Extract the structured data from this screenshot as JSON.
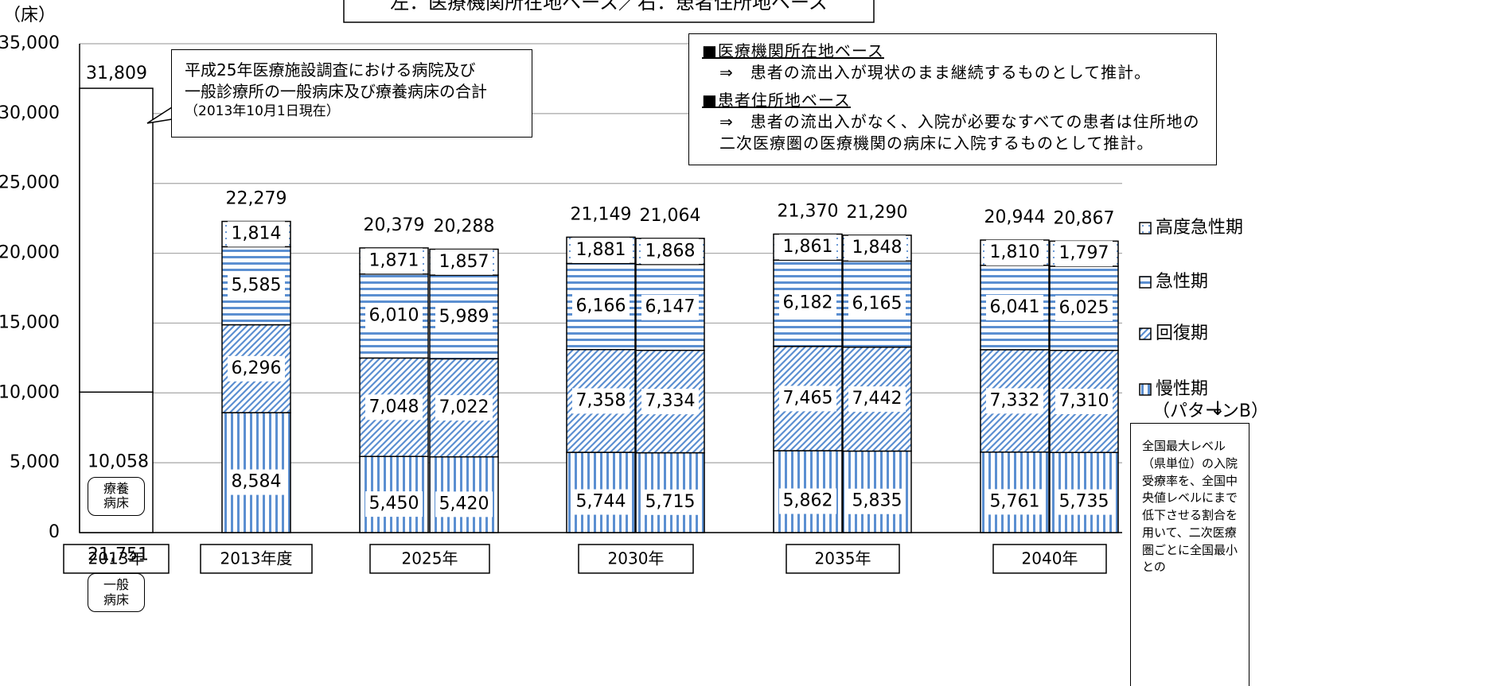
{
  "chart_data": {
    "type": "bar",
    "stacked": true,
    "title": "左：医療機関所在地ベース／右：患者住所地ベース",
    "y_label": "（床）",
    "ylim": [
      0,
      35000
    ],
    "yticks": [
      0,
      {
        "value": 5000,
        "label": "5,000"
      },
      {
        "value": 10000,
        "label": "10,000"
      },
      {
        "value": 15000,
        "label": "15,000"
      },
      {
        "value": 20000,
        "label": "20,000"
      },
      {
        "value": 25000,
        "label": "25,000"
      },
      {
        "value": 30000,
        "label": "30,000"
      },
      {
        "value": 35000,
        "label": "35,000"
      }
    ],
    "grid": true,
    "groups": [
      "2013年",
      "2013年度",
      "2025年",
      "2030年",
      "2035年",
      "2040年"
    ],
    "base_bar": {
      "names": [
        "療養病床",
        "一般病床"
      ],
      "values": [
        10058,
        21751
      ],
      "value_labels": [
        "10,058",
        "21,751"
      ],
      "total": 31809,
      "total_label": "31,809",
      "note": [
        "平成25年医療施設調査における病院及び",
        "一般診療所の一般病床及び療養病床の合計",
        "（2013年10月1日現在）"
      ]
    },
    "series": [
      {
        "name": "慢性期",
        "note": "（パターンB）",
        "color": "#5b8fd1",
        "pattern": "vertical",
        "values": [
          8584,
          5450,
          5420,
          5744,
          5715,
          5862,
          5835,
          5761,
          5735
        ],
        "value_labels": [
          "8,584",
          "5,450",
          "5,420",
          "5,744",
          "5,715",
          "5,862",
          "5,835",
          "5,761",
          "5,735"
        ]
      },
      {
        "name": "回復期",
        "color": "#5b8fd1",
        "pattern": "diagonal",
        "values": [
          6296,
          7048,
          7022,
          7358,
          7334,
          7465,
          7442,
          7332,
          7310
        ],
        "value_labels": [
          "6,296",
          "7,048",
          "7,022",
          "7,358",
          "7,334",
          "7,465",
          "7,442",
          "7,332",
          "7,310"
        ]
      },
      {
        "name": "急性期",
        "color": "#5b8fd1",
        "pattern": "horizontal",
        "values": [
          5585,
          6010,
          5989,
          6166,
          6147,
          6182,
          6165,
          6041,
          6025
        ],
        "value_labels": [
          "5,585",
          "6,010",
          "5,989",
          "6,166",
          "6,147",
          "6,182",
          "6,165",
          "6,041",
          "6,025"
        ]
      },
      {
        "name": "高度急性期",
        "color": "#5b8fd1",
        "pattern": "dots",
        "values": [
          1814,
          1871,
          1857,
          1881,
          1868,
          1861,
          1848,
          1810,
          1797
        ],
        "value_labels": [
          "1,814",
          "1,871",
          "1,857",
          "1,881",
          "1,868",
          "1,861",
          "1,848",
          "1,810",
          "1,797"
        ]
      }
    ],
    "totals": [
      22279,
      20379,
      20288,
      21149,
      21064,
      21370,
      21290,
      20944,
      20867
    ],
    "total_labels": [
      "22,279",
      "20,379",
      "20,288",
      "21,149",
      "21,064",
      "21,370",
      "21,290",
      "20,944",
      "20,867"
    ],
    "info": [
      {
        "heading": "■医療機関所在地ベース",
        "text": "⇒　患者の流出入が現状のまま継続するものとして推計。"
      },
      {
        "heading": "■患者住所地ベース",
        "text": "⇒　患者の流出入がなく、入院が必要なすべての患者は住所地の二次医療圏の医療機関の病床に入院するものとして推計。"
      }
    ],
    "legend_arrow": "↓",
    "side_note": "全国最大レベル（県単位）の入院受療率を、全国中央値レベルにまで低下させる割合を用いて、二次医療圏ごとに全国最小との"
  }
}
